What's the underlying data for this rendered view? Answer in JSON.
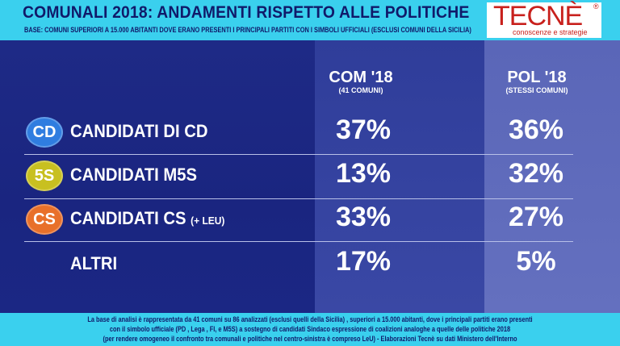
{
  "header": {
    "title": "COMUNALI 2018: ANDAMENTI RISPETTO ALLE POLITICHE",
    "base": "BASE: COMUNI SUPERIORI A 15.000 ABITANTI DOVE ERANO PRESENTI I PRINCIPALI PARTITI CON I SIMBOLI UFFICIALI (ESCLUSI COMUNI DELLA SICILIA)"
  },
  "logo": {
    "word": "TECNÈ",
    "registered": "®",
    "tagline": "conoscenze e strategie"
  },
  "colors": {
    "header_bg": "#3ad0ee",
    "main_bg": "#1e2a86",
    "logo_red": "#c8201c",
    "cd": "#2f7de0",
    "m5s": "#c8c020",
    "cs": "#e8702a"
  },
  "chart_data": {
    "type": "table",
    "columns": [
      {
        "header": "COM '18",
        "subheader": "(41 COMUNI)"
      },
      {
        "header": "POL '18",
        "subheader": "(STESSI COMUNI)"
      }
    ],
    "rows": [
      {
        "badge": "CD",
        "label": "CANDIDATI DI CD",
        "label_extra": "",
        "values": [
          "37%",
          "36%"
        ]
      },
      {
        "badge": "5S",
        "label": "CANDIDATI M5S",
        "label_extra": "",
        "values": [
          "13%",
          "32%"
        ]
      },
      {
        "badge": "CS",
        "label": "CANDIDATI CS",
        "label_extra": "(+ LEU)",
        "values": [
          "33%",
          "27%"
        ]
      },
      {
        "badge": "",
        "label": "ALTRI",
        "label_extra": "",
        "values": [
          "17%",
          "5%"
        ]
      }
    ]
  },
  "footer": {
    "lines": [
      "La base di analisi è rappresentata da 41 comuni su 86 analizzati (esclusi quelli della Sicilia) , superiori a 15.000 abitanti, dove i principali partiti erano presenti",
      "con il simbolo ufficiale (PD , Lega , FI, e M5S) a sostegno di candidati Sindaco espressione di coalizioni analoghe a quelle delle politiche 2018",
      "(per rendere omogeneo il confronto tra comunali e politiche nel centro-sinistra è compreso LeU) - Elaborazioni Tecnè su dati Ministero dell'Interno"
    ]
  }
}
